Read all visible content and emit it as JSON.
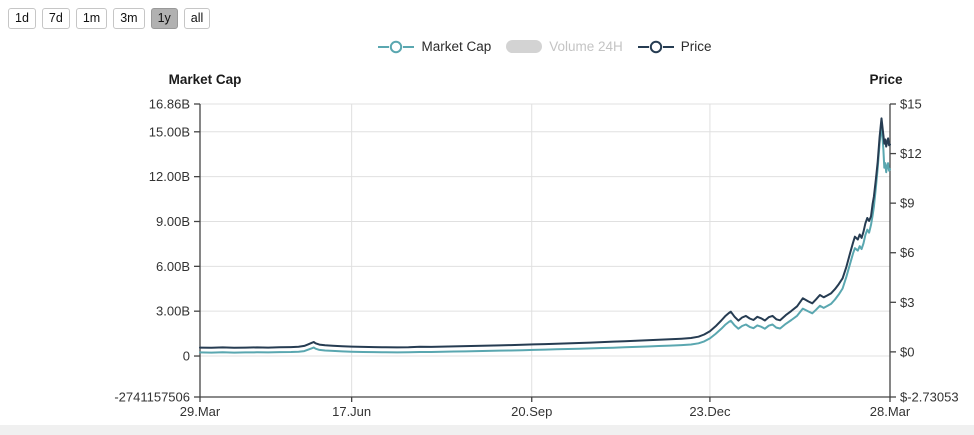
{
  "timeframe": {
    "buttons": [
      {
        "label": "1d",
        "active": false
      },
      {
        "label": "7d",
        "active": false
      },
      {
        "label": "1m",
        "active": false
      },
      {
        "label": "3m",
        "active": false
      },
      {
        "label": "1y",
        "active": true
      },
      {
        "label": "all",
        "active": false
      }
    ]
  },
  "legend": {
    "market_cap_label": "Market Cap",
    "volume_label": "Volume 24H",
    "price_label": "Price"
  },
  "colors": {
    "market_cap_line": "#5aa7b0",
    "price_line": "#263c52",
    "volume_swatch": "#d3d3d3",
    "volume_text": "#c4c4c4",
    "grid": "#e0e0e0",
    "axis": "#444444",
    "label_text": "#333333",
    "button_active_bg": "#b1b1b1"
  },
  "chart_data": {
    "type": "line",
    "title": "",
    "legend_position": "top-center",
    "grid": true,
    "left_axis": {
      "title": "Market Cap",
      "min": -2.741157506,
      "max": 16.86,
      "unit": "B",
      "ticks": [
        {
          "label": "16.86B",
          "value": 16.86
        },
        {
          "label": "15.00B",
          "value": 15
        },
        {
          "label": "12.00B",
          "value": 12
        },
        {
          "label": "9.00B",
          "value": 9
        },
        {
          "label": "6.00B",
          "value": 6
        },
        {
          "label": "3.00B",
          "value": 3
        },
        {
          "label": "0",
          "value": 0
        },
        {
          "label": "-2741157506",
          "value": -2.741157506
        }
      ]
    },
    "right_axis": {
      "title": "Price",
      "min": -2.73053,
      "max": 15,
      "unit": "$",
      "ticks": [
        {
          "label": "$15",
          "value": 15
        },
        {
          "label": "$12",
          "value": 12
        },
        {
          "label": "$9",
          "value": 9
        },
        {
          "label": "$6",
          "value": 6
        },
        {
          "label": "$3",
          "value": 3
        },
        {
          "label": "$0",
          "value": 0
        },
        {
          "label": "$-2.73053",
          "value": -2.73053
        }
      ]
    },
    "x_axis": {
      "min_day": 0,
      "max_day": 364,
      "ticks": [
        {
          "label": "29.Mar",
          "day": 0
        },
        {
          "label": "17.Jun",
          "day": 80
        },
        {
          "label": "20.Sep",
          "day": 175
        },
        {
          "label": "23.Dec",
          "day": 269
        },
        {
          "label": "28.Mar",
          "day": 364
        }
      ]
    },
    "hidden_series": [
      "Volume 24H"
    ],
    "series": [
      {
        "name": "Market Cap",
        "axis": "left",
        "color": "#5aa7b0",
        "points": [
          [
            0,
            0.24
          ],
          [
            6,
            0.23
          ],
          [
            12,
            0.25
          ],
          [
            18,
            0.23
          ],
          [
            24,
            0.24
          ],
          [
            30,
            0.25
          ],
          [
            36,
            0.24
          ],
          [
            42,
            0.26
          ],
          [
            48,
            0.27
          ],
          [
            52,
            0.29
          ],
          [
            55,
            0.33
          ],
          [
            57,
            0.42
          ],
          [
            59,
            0.52
          ],
          [
            60,
            0.57
          ],
          [
            61,
            0.49
          ],
          [
            63,
            0.41
          ],
          [
            66,
            0.37
          ],
          [
            70,
            0.34
          ],
          [
            75,
            0.31
          ],
          [
            80,
            0.29
          ],
          [
            86,
            0.27
          ],
          [
            92,
            0.26
          ],
          [
            98,
            0.25
          ],
          [
            104,
            0.24
          ],
          [
            110,
            0.25
          ],
          [
            116,
            0.27
          ],
          [
            122,
            0.27
          ],
          [
            128,
            0.29
          ],
          [
            134,
            0.3
          ],
          [
            140,
            0.31
          ],
          [
            146,
            0.33
          ],
          [
            152,
            0.34
          ],
          [
            158,
            0.36
          ],
          [
            164,
            0.37
          ],
          [
            170,
            0.39
          ],
          [
            176,
            0.41
          ],
          [
            182,
            0.43
          ],
          [
            188,
            0.45
          ],
          [
            194,
            0.47
          ],
          [
            200,
            0.49
          ],
          [
            206,
            0.51
          ],
          [
            212,
            0.54
          ],
          [
            218,
            0.56
          ],
          [
            224,
            0.59
          ],
          [
            230,
            0.61
          ],
          [
            236,
            0.64
          ],
          [
            242,
            0.67
          ],
          [
            248,
            0.7
          ],
          [
            254,
            0.73
          ],
          [
            259,
            0.77
          ],
          [
            263,
            0.85
          ],
          [
            266,
            0.98
          ],
          [
            269,
            1.18
          ],
          [
            272,
            1.48
          ],
          [
            275,
            1.82
          ],
          [
            277,
            2.08
          ],
          [
            279,
            2.28
          ],
          [
            280,
            2.36
          ],
          [
            282,
            2.05
          ],
          [
            284,
            1.83
          ],
          [
            286,
            2.01
          ],
          [
            288,
            2.11
          ],
          [
            290,
            1.95
          ],
          [
            292,
            1.86
          ],
          [
            294,
            2.05
          ],
          [
            296,
            1.96
          ],
          [
            298,
            1.83
          ],
          [
            300,
            2.03
          ],
          [
            302,
            2.11
          ],
          [
            304,
            1.9
          ],
          [
            306,
            1.84
          ],
          [
            309,
            2.15
          ],
          [
            312,
            2.41
          ],
          [
            315,
            2.69
          ],
          [
            318,
            3.17
          ],
          [
            321,
            2.98
          ],
          [
            323,
            2.86
          ],
          [
            325,
            3.1
          ],
          [
            327,
            3.36
          ],
          [
            329,
            3.22
          ],
          [
            331,
            3.35
          ],
          [
            333,
            3.5
          ],
          [
            335,
            3.78
          ],
          [
            337,
            4.12
          ],
          [
            339,
            4.52
          ],
          [
            341,
            5.31
          ],
          [
            343,
            6.2
          ],
          [
            344.5,
            6.85
          ],
          [
            345.5,
            7.21
          ],
          [
            347,
            7.05
          ],
          [
            348,
            7.35
          ],
          [
            349,
            7.15
          ],
          [
            350,
            7.54
          ],
          [
            351,
            8.1
          ],
          [
            352,
            8.45
          ],
          [
            353,
            8.25
          ],
          [
            354,
            8.77
          ],
          [
            354.8,
            9.4
          ],
          [
            355.5,
            9.99
          ],
          [
            356.5,
            11.22
          ],
          [
            357.5,
            12.56
          ],
          [
            358.5,
            14.23
          ],
          [
            359.5,
            15.5
          ],
          [
            360.5,
            13.8
          ],
          [
            361,
            12.6
          ],
          [
            361.5,
            12.9
          ],
          [
            362,
            12.3
          ],
          [
            362.5,
            12.7
          ],
          [
            363,
            12.9
          ],
          [
            363.5,
            12.4
          ],
          [
            364,
            12.5
          ]
        ]
      },
      {
        "name": "Price",
        "axis": "right",
        "color": "#263c52",
        "points": [
          [
            0,
            0.26
          ],
          [
            6,
            0.25
          ],
          [
            12,
            0.27
          ],
          [
            18,
            0.25
          ],
          [
            24,
            0.26
          ],
          [
            30,
            0.27
          ],
          [
            36,
            0.26
          ],
          [
            42,
            0.28
          ],
          [
            48,
            0.29
          ],
          [
            52,
            0.31
          ],
          [
            55,
            0.36
          ],
          [
            57,
            0.45
          ],
          [
            59,
            0.55
          ],
          [
            60,
            0.6
          ],
          [
            61,
            0.52
          ],
          [
            63,
            0.44
          ],
          [
            66,
            0.4
          ],
          [
            70,
            0.37
          ],
          [
            75,
            0.34
          ],
          [
            80,
            0.32
          ],
          [
            86,
            0.3
          ],
          [
            92,
            0.29
          ],
          [
            98,
            0.28
          ],
          [
            104,
            0.27
          ],
          [
            110,
            0.28
          ],
          [
            116,
            0.31
          ],
          [
            122,
            0.3
          ],
          [
            128,
            0.32
          ],
          [
            134,
            0.33
          ],
          [
            140,
            0.35
          ],
          [
            146,
            0.36
          ],
          [
            152,
            0.38
          ],
          [
            158,
            0.39
          ],
          [
            164,
            0.41
          ],
          [
            170,
            0.43
          ],
          [
            176,
            0.45
          ],
          [
            182,
            0.47
          ],
          [
            188,
            0.49
          ],
          [
            194,
            0.51
          ],
          [
            200,
            0.54
          ],
          [
            206,
            0.56
          ],
          [
            212,
            0.59
          ],
          [
            218,
            0.62
          ],
          [
            224,
            0.64
          ],
          [
            230,
            0.67
          ],
          [
            236,
            0.7
          ],
          [
            242,
            0.73
          ],
          [
            248,
            0.76
          ],
          [
            254,
            0.8
          ],
          [
            259,
            0.84
          ],
          [
            263,
            0.92
          ],
          [
            266,
            1.05
          ],
          [
            269,
            1.25
          ],
          [
            272,
            1.55
          ],
          [
            275,
            1.9
          ],
          [
            277,
            2.15
          ],
          [
            279,
            2.35
          ],
          [
            280,
            2.43
          ],
          [
            282,
            2.12
          ],
          [
            284,
            1.89
          ],
          [
            286,
            2.08
          ],
          [
            288,
            2.18
          ],
          [
            290,
            2.02
          ],
          [
            292,
            1.93
          ],
          [
            294,
            2.12
          ],
          [
            296,
            2.03
          ],
          [
            298,
            1.9
          ],
          [
            300,
            2.1
          ],
          [
            302,
            2.18
          ],
          [
            304,
            1.97
          ],
          [
            306,
            1.91
          ],
          [
            309,
            2.22
          ],
          [
            312,
            2.48
          ],
          [
            315,
            2.76
          ],
          [
            318,
            3.24
          ],
          [
            321,
            3.05
          ],
          [
            323,
            2.94
          ],
          [
            325,
            3.18
          ],
          [
            327,
            3.44
          ],
          [
            329,
            3.3
          ],
          [
            331,
            3.42
          ],
          [
            333,
            3.55
          ],
          [
            335,
            3.8
          ],
          [
            337,
            4.1
          ],
          [
            339,
            4.45
          ],
          [
            341,
            5.15
          ],
          [
            343,
            6.0
          ],
          [
            344.5,
            6.6
          ],
          [
            345.5,
            6.97
          ],
          [
            347,
            6.8
          ],
          [
            348,
            7.1
          ],
          [
            349,
            6.9
          ],
          [
            350,
            7.27
          ],
          [
            351,
            7.78
          ],
          [
            352,
            8.1
          ],
          [
            353,
            7.92
          ],
          [
            354,
            8.2
          ],
          [
            354.8,
            8.95
          ],
          [
            355.5,
            9.4
          ],
          [
            356.5,
            10.4
          ],
          [
            357.5,
            11.5
          ],
          [
            358.5,
            13.0
          ],
          [
            359.5,
            14.13
          ],
          [
            360.5,
            13.1
          ],
          [
            361,
            12.6
          ],
          [
            361.5,
            12.85
          ],
          [
            362,
            12.42
          ],
          [
            362.5,
            12.7
          ],
          [
            363,
            12.92
          ],
          [
            363.5,
            12.5
          ],
          [
            364,
            12.55
          ]
        ]
      }
    ]
  }
}
